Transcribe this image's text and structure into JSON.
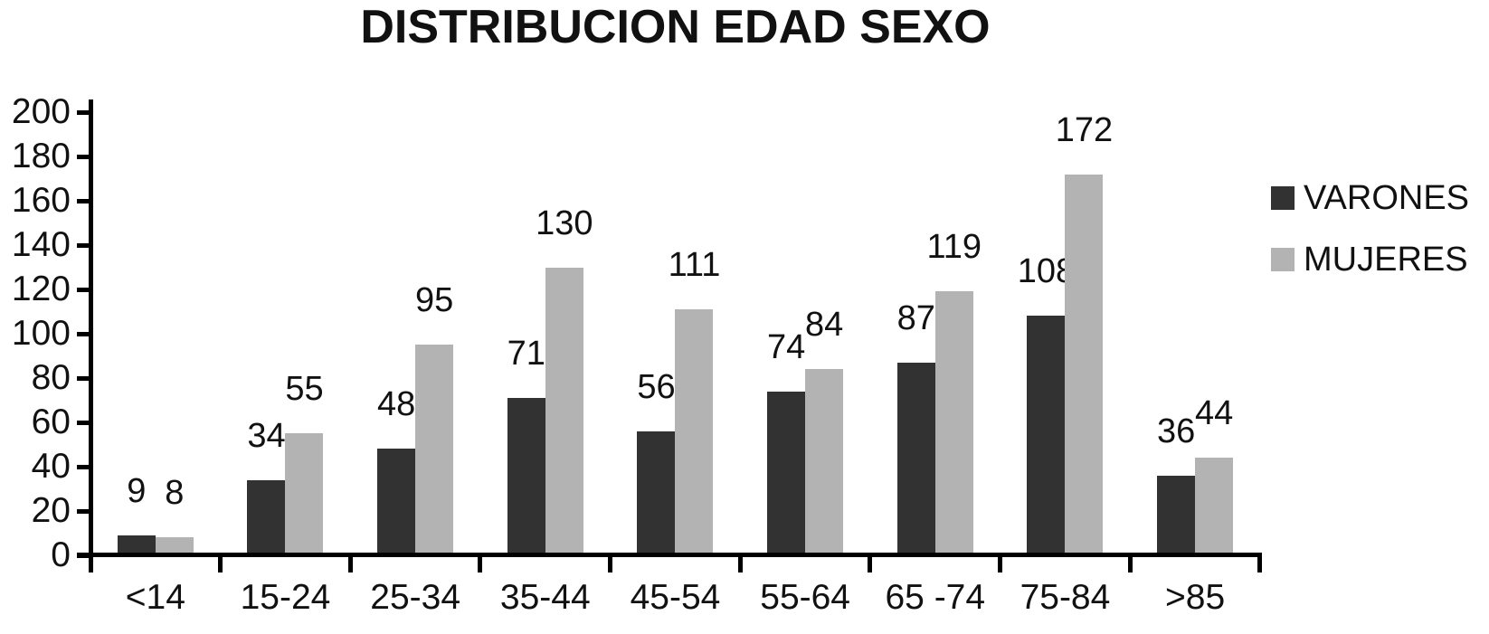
{
  "chart_data": {
    "type": "bar",
    "title": "DISTRIBUCION EDAD SEXO",
    "categories": [
      "<14",
      "15-24",
      "25-34",
      "35-44",
      "45-54",
      "55-64",
      "65 -74",
      "75-84",
      ">85"
    ],
    "series": [
      {
        "name": "VARONES",
        "color": "#323232",
        "values": [
          9,
          34,
          48,
          71,
          56,
          74,
          87,
          108,
          36
        ]
      },
      {
        "name": "MUJERES",
        "color": "#b3b3b3",
        "values": [
          8,
          55,
          95,
          130,
          111,
          84,
          119,
          172,
          44
        ]
      }
    ],
    "xlabel": "",
    "ylabel": "",
    "ylim": [
      0,
      200
    ],
    "y_ticks": [
      0,
      20,
      40,
      60,
      80,
      100,
      120,
      140,
      160,
      180,
      200
    ],
    "grid": false,
    "data_labels": true,
    "legend_position": "right",
    "axis_color": "#000000",
    "bar_dark_color": "#323232",
    "bar_light_color": "#b3b3b3",
    "background_color": "#ffffff"
  }
}
